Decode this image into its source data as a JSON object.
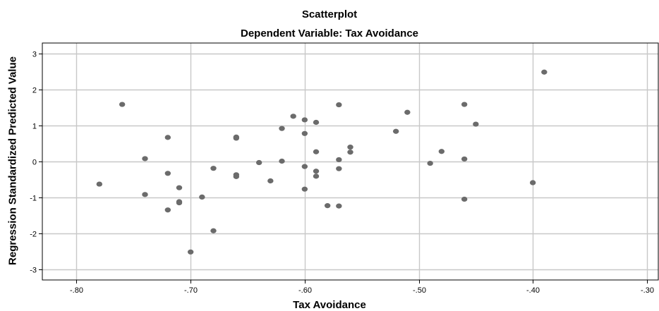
{
  "chart_data": {
    "type": "scatter",
    "title": "Scatterplot",
    "subtitle": "Dependent Variable: Tax Avoidance",
    "xlabel": "Tax Avoidance",
    "ylabel": "Regression Standardized Predicted Value",
    "xlim": [
      -0.83,
      -0.29
    ],
    "ylim": [
      -3.3,
      3.3
    ],
    "x_ticks": [
      -0.8,
      -0.7,
      -0.6,
      -0.5,
      -0.4,
      -0.3
    ],
    "x_tick_labels": [
      "-.80",
      "-.70",
      "-.60",
      "-.50",
      "-.40",
      "-.30"
    ],
    "y_ticks": [
      3,
      2,
      1,
      0,
      -1,
      -2,
      -3
    ],
    "y_tick_labels": [
      "3",
      "2",
      "1",
      "0",
      "-1",
      "-2",
      "-3"
    ],
    "grid": true,
    "colors": {
      "point": "#6b6b6b",
      "grid": "#c8c8c8",
      "axis": "#000000"
    },
    "points": [
      {
        "x": -0.78,
        "y": -0.63
      },
      {
        "x": -0.76,
        "y": 1.59
      },
      {
        "x": -0.74,
        "y": 0.08
      },
      {
        "x": -0.74,
        "y": -0.92
      },
      {
        "x": -0.72,
        "y": 0.67
      },
      {
        "x": -0.72,
        "y": -0.33
      },
      {
        "x": -0.72,
        "y": -1.35
      },
      {
        "x": -0.71,
        "y": -0.73
      },
      {
        "x": -0.71,
        "y": -1.12
      },
      {
        "x": -0.71,
        "y": -1.15
      },
      {
        "x": -0.7,
        "y": -2.52
      },
      {
        "x": -0.69,
        "y": -0.99
      },
      {
        "x": -0.68,
        "y": -0.19
      },
      {
        "x": -0.68,
        "y": -1.93
      },
      {
        "x": -0.66,
        "y": 0.65
      },
      {
        "x": -0.66,
        "y": 0.68
      },
      {
        "x": -0.66,
        "y": -0.37
      },
      {
        "x": -0.66,
        "y": -0.42
      },
      {
        "x": -0.64,
        "y": -0.03
      },
      {
        "x": -0.63,
        "y": -0.54
      },
      {
        "x": -0.62,
        "y": 0.92
      },
      {
        "x": -0.62,
        "y": 0.01
      },
      {
        "x": -0.61,
        "y": 1.26
      },
      {
        "x": -0.6,
        "y": 1.16
      },
      {
        "x": -0.6,
        "y": 0.78
      },
      {
        "x": -0.6,
        "y": -0.14
      },
      {
        "x": -0.6,
        "y": -0.77
      },
      {
        "x": -0.59,
        "y": 1.09
      },
      {
        "x": -0.59,
        "y": 0.27
      },
      {
        "x": -0.59,
        "y": -0.27
      },
      {
        "x": -0.59,
        "y": -0.41
      },
      {
        "x": -0.58,
        "y": -1.23
      },
      {
        "x": -0.57,
        "y": 1.58
      },
      {
        "x": -0.57,
        "y": 0.05
      },
      {
        "x": -0.57,
        "y": -0.2
      },
      {
        "x": -0.57,
        "y": -1.24
      },
      {
        "x": -0.56,
        "y": 0.4
      },
      {
        "x": -0.56,
        "y": 0.26
      },
      {
        "x": -0.52,
        "y": 0.84
      },
      {
        "x": -0.51,
        "y": 1.37
      },
      {
        "x": -0.49,
        "y": -0.05
      },
      {
        "x": -0.48,
        "y": 0.28
      },
      {
        "x": -0.46,
        "y": 1.59
      },
      {
        "x": -0.46,
        "y": 0.07
      },
      {
        "x": -0.46,
        "y": -1.05
      },
      {
        "x": -0.45,
        "y": 1.04
      },
      {
        "x": -0.4,
        "y": -0.59
      },
      {
        "x": -0.39,
        "y": 2.49
      }
    ]
  }
}
